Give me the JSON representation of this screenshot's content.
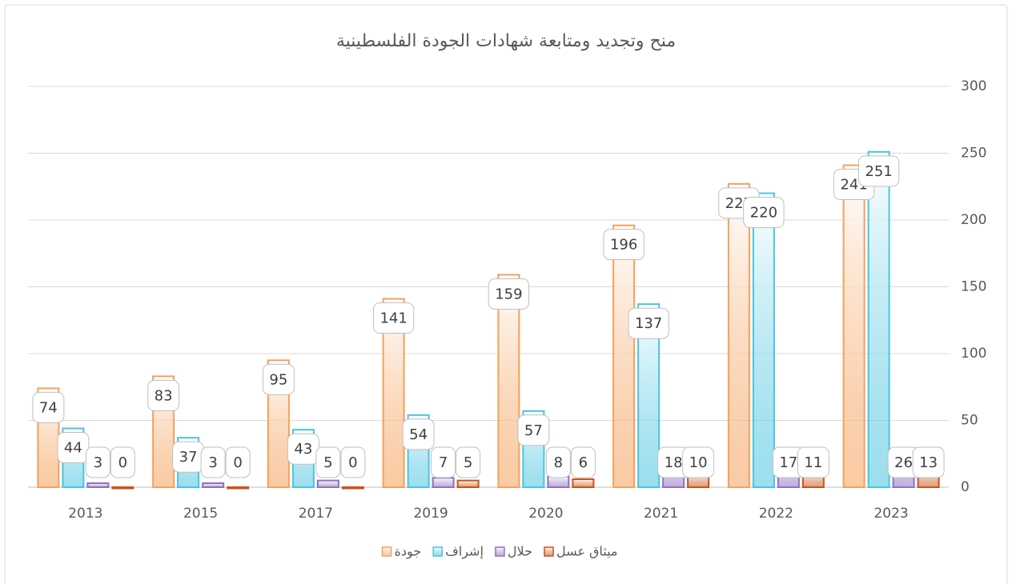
{
  "chart_data": {
    "type": "bar",
    "title": "منح وتجديد ومتابعة شهادات الجودة الفلسطينية",
    "categories": [
      "2013",
      "2015",
      "2017",
      "2019",
      "2020",
      "2021",
      "2022",
      "2023"
    ],
    "series": [
      {
        "name": "جودة",
        "color": "#f5a05a",
        "values": [
          74,
          83,
          95,
          141,
          159,
          196,
          227,
          241
        ]
      },
      {
        "name": "إشراف",
        "color": "#4bc4e0",
        "values": [
          44,
          37,
          43,
          54,
          57,
          137,
          220,
          251
        ]
      },
      {
        "name": "حلال",
        "color": "#8e72bd",
        "values": [
          3,
          3,
          5,
          7,
          8,
          18,
          17,
          26
        ]
      },
      {
        "name": "ميثاق عسل",
        "color": "#c8531a",
        "values": [
          0,
          0,
          0,
          5,
          6,
          10,
          11,
          13
        ]
      }
    ],
    "ylim": [
      0,
      300
    ],
    "yticks": [
      0,
      50,
      100,
      150,
      200,
      250,
      300
    ],
    "grid": true,
    "y_axis_side": "right",
    "legend": "bottom"
  }
}
